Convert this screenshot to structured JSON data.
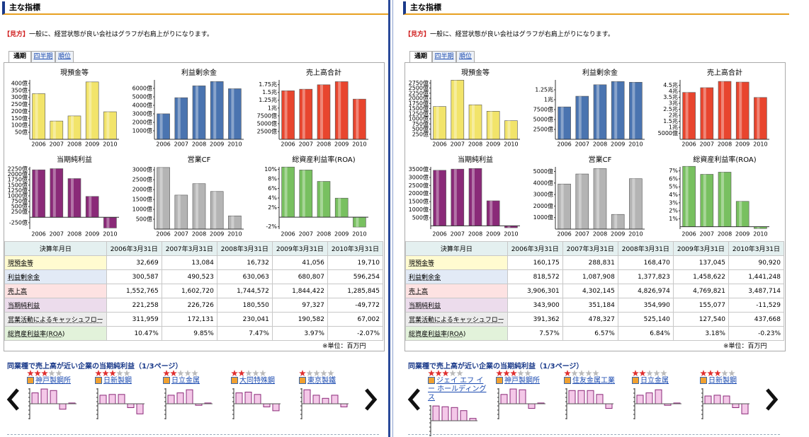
{
  "panels": [
    {
      "title": "主な指標",
      "hint_label": "【見方】",
      "hint": "一般に、経営状態が良い会社はグラフが右肩上がりになります。",
      "tabs": [
        "通期",
        "四半期",
        "順位"
      ],
      "charts": [
        {
          "type": "bar",
          "title": "現預金等",
          "categories": [
            "2006",
            "2007",
            "2008",
            "2009",
            "2010"
          ],
          "values": [
            326.69,
            130.84,
            167.32,
            410.56,
            197.1
          ],
          "color": "#f2e46a",
          "ylim": [
            0,
            425
          ],
          "yticks": [
            {
              "value": 50,
              "label": "50億"
            },
            {
              "value": 100,
              "label": "100億"
            },
            {
              "value": 150,
              "label": "150億"
            },
            {
              "value": 200,
              "label": "200億"
            },
            {
              "value": 250,
              "label": "250億"
            },
            {
              "value": 300,
              "label": "300億"
            },
            {
              "value": 350,
              "label": "350億"
            },
            {
              "value": 400,
              "label": "400億"
            }
          ]
        },
        {
          "type": "bar",
          "title": "利益剰余金",
          "categories": [
            "2006",
            "2007",
            "2008",
            "2009",
            "2010"
          ],
          "values": [
            3005.87,
            4905.23,
            6300.63,
            6808.07,
            5962.54
          ],
          "color": "#4a74b0",
          "ylim": [
            0,
            7000
          ],
          "yticks": [
            {
              "value": 1000,
              "label": "1000億"
            },
            {
              "value": 2000,
              "label": "2000億"
            },
            {
              "value": 3000,
              "label": "3000億"
            },
            {
              "value": 4000,
              "label": "4000億"
            },
            {
              "value": 5000,
              "label": "5000億"
            },
            {
              "value": 6000,
              "label": "6000億"
            }
          ]
        },
        {
          "type": "bar",
          "title": "売上高合計",
          "categories": [
            "2006",
            "2007",
            "2008",
            "2009",
            "2010"
          ],
          "values": [
            15527.65,
            16027.2,
            17445.72,
            18444.22,
            12858.45
          ],
          "color": "#e8452e",
          "ylim": [
            0,
            19000
          ],
          "yticks": [
            {
              "value": 2500,
              "label": "2500億"
            },
            {
              "value": 5000,
              "label": "5000億"
            },
            {
              "value": 7500,
              "label": "7500億"
            },
            {
              "value": 10000,
              "label": "1兆"
            },
            {
              "value": 12500,
              "label": "1.25兆"
            },
            {
              "value": 15000,
              "label": "1.5兆"
            },
            {
              "value": 17500,
              "label": "1.75兆"
            }
          ]
        },
        {
          "type": "bar",
          "title": "当期純利益",
          "categories": [
            "2006",
            "2007",
            "2008",
            "2009",
            "2010"
          ],
          "values": [
            2212.58,
            2267.26,
            1805.5,
            973.27,
            -497.72
          ],
          "color": "#8a2a78",
          "ylim": [
            -550,
            2350
          ],
          "yticks": [
            {
              "value": -250,
              "label": "-250億"
            },
            {
              "value": 250,
              "label": "250億"
            },
            {
              "value": 500,
              "label": "500億"
            },
            {
              "value": 750,
              "label": "750億"
            },
            {
              "value": 1000,
              "label": "1000億"
            },
            {
              "value": 1250,
              "label": "1250億"
            },
            {
              "value": 1500,
              "label": "1500億"
            },
            {
              "value": 1750,
              "label": "1750億"
            },
            {
              "value": 2000,
              "label": "2000億"
            },
            {
              "value": 2250,
              "label": "2250億"
            }
          ]
        },
        {
          "type": "bar",
          "title": "営業CF",
          "categories": [
            "2006",
            "2007",
            "2008",
            "2009",
            "2010"
          ],
          "values": [
            3119.59,
            1721.31,
            2300.41,
            1905.82,
            670.02
          ],
          "color": "#b4b4b4",
          "ylim": [
            0,
            3150
          ],
          "yticks": [
            {
              "value": 500,
              "label": "500億"
            },
            {
              "value": 1000,
              "label": "1000億"
            },
            {
              "value": 1500,
              "label": "1500億"
            },
            {
              "value": 2000,
              "label": "2000億"
            },
            {
              "value": 2500,
              "label": "2500億"
            },
            {
              "value": 3000,
              "label": "3000億"
            }
          ]
        },
        {
          "type": "bar",
          "title": "総資産利益率(ROA)",
          "categories": [
            "2006",
            "2007",
            "2008",
            "2009",
            "2010"
          ],
          "values": [
            10.47,
            9.85,
            7.47,
            3.97,
            -2.07
          ],
          "color": "#78c060",
          "ylim": [
            -2.5,
            10.5
          ],
          "yticks": [
            {
              "value": -2,
              "label": "-2%"
            },
            {
              "value": 2,
              "label": "2%"
            },
            {
              "value": 4,
              "label": "4%"
            },
            {
              "value": 6,
              "label": "6%"
            },
            {
              "value": 8,
              "label": "8%"
            },
            {
              "value": 10,
              "label": "10%"
            }
          ]
        }
      ],
      "table": {
        "header": [
          "決算年月日",
          "2006年3月31日",
          "2007年3月31日",
          "2008年3月31日",
          "2009年3月31日",
          "2010年3月31日"
        ],
        "rows": [
          [
            "現預金等",
            "32,669",
            "13,084",
            "16,732",
            "41,056",
            "19,710"
          ],
          [
            "利益剰余金",
            "300,587",
            "490,523",
            "630,063",
            "680,807",
            "596,254"
          ],
          [
            "売上高",
            "1,552,765",
            "1,602,720",
            "1,744,572",
            "1,844,422",
            "1,285,845"
          ],
          [
            "当期純利益",
            "221,258",
            "226,726",
            "180,550",
            "97,327",
            "-49,772"
          ],
          [
            "営業活動によるキャッシュフロー",
            "311,959",
            "172,131",
            "230,041",
            "190,582",
            "67,002"
          ],
          [
            "総資産利益率(ROA)",
            "10.47%",
            "9.85%",
            "7.47%",
            "3.97%",
            "-2.07%"
          ]
        ],
        "unit_note": "※単位：百万円"
      },
      "peers": {
        "title": "同業種で売上高が近い企業の当期純利益（1/3ページ）",
        "items": [
          {
            "name": "神戸製鋼所",
            "rating": 3,
            "values": [
              0.7,
              0.95,
              0.85,
              -0.35,
              0.05
            ]
          },
          {
            "name": "日新製鋼",
            "rating": 3,
            "values": [
              0.55,
              0.6,
              0.6,
              -0.25,
              -0.65
            ]
          },
          {
            "name": "日立金属",
            "rating": 2,
            "values": [
              0.55,
              0.7,
              0.9,
              -0.1,
              0.05
            ]
          },
          {
            "name": "大同特殊鋼",
            "rating": 2,
            "values": [
              0.7,
              0.75,
              0.6,
              -0.2,
              -0.45
            ]
          },
          {
            "name": "東京製鐵",
            "rating": 1,
            "values": [
              0.9,
              0.55,
              0.35,
              0.55,
              -0.2
            ]
          }
        ],
        "ylim": [
          -1,
          1
        ]
      }
    },
    {
      "title": "主な指標",
      "hint_label": "【見方】",
      "hint": "一般に、経営状態が良い会社はグラフが右肩上がりになります。",
      "tabs": [
        "通期",
        "四半期",
        "順位"
      ],
      "charts": [
        {
          "type": "bar",
          "title": "現預金等",
          "categories": [
            "2006",
            "2007",
            "2008",
            "2009",
            "2010"
          ],
          "values": [
            1601.75,
            2888.31,
            1684.7,
            1370.45,
            909.2
          ],
          "color": "#f2e46a",
          "ylim": [
            0,
            2900
          ],
          "yticks": [
            {
              "value": 250,
              "label": "250億"
            },
            {
              "value": 500,
              "label": "500億"
            },
            {
              "value": 750,
              "label": "750億"
            },
            {
              "value": 1000,
              "label": "1000億"
            },
            {
              "value": 1250,
              "label": "1250億"
            },
            {
              "value": 1500,
              "label": "1500億"
            },
            {
              "value": 1750,
              "label": "1750億"
            },
            {
              "value": 2000,
              "label": "2000億"
            },
            {
              "value": 2250,
              "label": "2250億"
            },
            {
              "value": 2500,
              "label": "2500億"
            },
            {
              "value": 2750,
              "label": "2750億"
            }
          ]
        },
        {
          "type": "bar",
          "title": "利益剰余金",
          "categories": [
            "2006",
            "2007",
            "2008",
            "2009",
            "2010"
          ],
          "values": [
            8185.72,
            10879.08,
            13778.23,
            14586.22,
            14412.48
          ],
          "color": "#4a74b0",
          "ylim": [
            0,
            15000
          ],
          "yticks": [
            {
              "value": 2500,
              "label": "2500億"
            },
            {
              "value": 5000,
              "label": "5000億"
            },
            {
              "value": 7500,
              "label": "7500億"
            },
            {
              "value": 10000,
              "label": "1兆"
            },
            {
              "value": 12500,
              "label": "1.25兆"
            }
          ]
        },
        {
          "type": "bar",
          "title": "売上高合計",
          "categories": [
            "2006",
            "2007",
            "2008",
            "2009",
            "2010"
          ],
          "values": [
            39063.01,
            43021.45,
            48269.74,
            47698.21,
            34877.14
          ],
          "color": "#e8452e",
          "ylim": [
            0,
            49500
          ],
          "yticks": [
            {
              "value": 5000,
              "label": "5000億"
            },
            {
              "value": 10000,
              "label": "1兆"
            },
            {
              "value": 15000,
              "label": "1.5兆"
            },
            {
              "value": 20000,
              "label": "2兆"
            },
            {
              "value": 25000,
              "label": "2.5兆"
            },
            {
              "value": 30000,
              "label": "3兆"
            },
            {
              "value": 35000,
              "label": "3.5兆"
            },
            {
              "value": 40000,
              "label": "4兆"
            },
            {
              "value": 45000,
              "label": "4.5兆"
            }
          ]
        },
        {
          "type": "bar",
          "title": "当期純利益",
          "categories": [
            "2006",
            "2007",
            "2008",
            "2009",
            "2010"
          ],
          "values": [
            3439,
            3511.84,
            3549.9,
            1550.77,
            -115.29
          ],
          "color": "#8a2a78",
          "ylim": [
            -200,
            3650
          ],
          "yticks": [
            {
              "value": 500,
              "label": "500億"
            },
            {
              "value": 1000,
              "label": "1000億"
            },
            {
              "value": 1500,
              "label": "1500億"
            },
            {
              "value": 2000,
              "label": "2000億"
            },
            {
              "value": 2500,
              "label": "2500億"
            },
            {
              "value": 3000,
              "label": "3000億"
            },
            {
              "value": 3500,
              "label": "3500億"
            }
          ]
        },
        {
          "type": "bar",
          "title": "営業CF",
          "categories": [
            "2006",
            "2007",
            "2008",
            "2009",
            "2010"
          ],
          "values": [
            3913.62,
            4783.27,
            5251.4,
            1275.4,
            4376.68
          ],
          "color": "#b4b4b4",
          "ylim": [
            0,
            5400
          ],
          "yticks": [
            {
              "value": 1000,
              "label": "1000億"
            },
            {
              "value": 2000,
              "label": "2000億"
            },
            {
              "value": 3000,
              "label": "3000億"
            },
            {
              "value": 4000,
              "label": "4000億"
            },
            {
              "value": 5000,
              "label": "5000億"
            }
          ]
        },
        {
          "type": "bar",
          "title": "総資産利益率(ROA)",
          "categories": [
            "2006",
            "2007",
            "2008",
            "2009",
            "2010"
          ],
          "values": [
            7.57,
            6.57,
            6.84,
            3.18,
            -0.23
          ],
          "color": "#78c060",
          "ylim": [
            -0.3,
            7.5
          ],
          "yticks": [
            {
              "value": 1,
              "label": "1%"
            },
            {
              "value": 2,
              "label": "2%"
            },
            {
              "value": 3,
              "label": "3%"
            },
            {
              "value": 4,
              "label": "4%"
            },
            {
              "value": 5,
              "label": "5%"
            },
            {
              "value": 6,
              "label": "6%"
            },
            {
              "value": 7,
              "label": "7%"
            }
          ]
        }
      ],
      "table": {
        "header": [
          "決算年月日",
          "2006年3月31日",
          "2007年3月31日",
          "2008年3月31日",
          "2009年3月31日",
          "2010年3月31日"
        ],
        "rows": [
          [
            "現預金等",
            "160,175",
            "288,831",
            "168,470",
            "137,045",
            "90,920"
          ],
          [
            "利益剰余金",
            "818,572",
            "1,087,908",
            "1,377,823",
            "1,458,622",
            "1,441,248"
          ],
          [
            "売上高",
            "3,906,301",
            "4,302,145",
            "4,826,974",
            "4,769,821",
            "3,487,714"
          ],
          [
            "当期純利益",
            "343,900",
            "351,184",
            "354,990",
            "155,077",
            "-11,529"
          ],
          [
            "営業活動によるキャッシュフロー",
            "391,362",
            "478,327",
            "525,140",
            "127,540",
            "437,668"
          ],
          [
            "総資産利益率(ROA)",
            "7.57%",
            "6.57%",
            "6.84%",
            "3.18%",
            "-0.23%"
          ]
        ],
        "unit_note": "※単位：百万円"
      },
      "peers": {
        "title": "同業種で売上高が近い企業の当期純利益（1/3ページ）",
        "items": [
          {
            "name": "ジェイ エフ イー ホールディングス",
            "rating": 3,
            "values": [
              0.95,
              0.9,
              0.85,
              0.65,
              0.15
            ]
          },
          {
            "name": "神戸製鋼所",
            "rating": 3,
            "values": [
              0.6,
              0.95,
              0.9,
              -0.3,
              0.05
            ]
          },
          {
            "name": "住友金属工業",
            "rating": 1,
            "values": [
              0.85,
              0.85,
              0.85,
              0.6,
              -0.3
            ]
          },
          {
            "name": "日立金属",
            "rating": 2,
            "values": [
              0.55,
              0.7,
              0.9,
              -0.1,
              0.05
            ]
          },
          {
            "name": "日新製鋼",
            "rating": 3,
            "values": [
              0.5,
              0.55,
              0.5,
              -0.25,
              -0.65
            ]
          }
        ],
        "ylim": [
          -1,
          1
        ]
      }
    }
  ]
}
